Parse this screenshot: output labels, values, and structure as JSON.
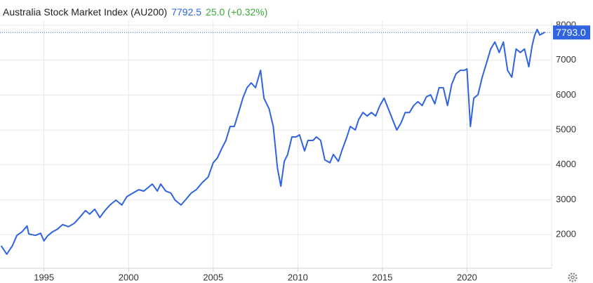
{
  "chart_data": {
    "type": "line",
    "title": "Australia Stock Market Index (AU200)",
    "price": "7792.5",
    "change": "25.0 (+0.32%)",
    "last_price": {
      "value": 7793.0,
      "label": "7793.0"
    },
    "x": [
      1992.47,
      1992.8,
      1993.13,
      1993.4,
      1993.7,
      1994.0,
      1994.1,
      1994.5,
      1994.8,
      1995.0,
      1995.2,
      1995.5,
      1995.8,
      1996.1,
      1996.45,
      1996.8,
      1997.1,
      1997.45,
      1997.7,
      1998.0,
      1998.3,
      1998.6,
      1998.9,
      1999.25,
      1999.6,
      1999.9,
      2000.25,
      2000.6,
      2000.9,
      2001.2,
      2001.4,
      2001.7,
      2001.9,
      2002.2,
      2002.5,
      2002.75,
      2003.1,
      2003.35,
      2003.7,
      2004.0,
      2004.35,
      2004.7,
      2005.0,
      2005.25,
      2005.5,
      2005.75,
      2006.0,
      2006.25,
      2006.5,
      2006.75,
      2007.0,
      2007.25,
      2007.5,
      2007.8,
      2008.0,
      2008.3,
      2008.55,
      2008.8,
      2009.0,
      2009.2,
      2009.4,
      2009.65,
      2009.9,
      2010.1,
      2010.4,
      2010.6,
      2010.9,
      2011.1,
      2011.35,
      2011.6,
      2011.9,
      2012.1,
      2012.4,
      2012.6,
      2012.9,
      2013.1,
      2013.4,
      2013.6,
      2013.85,
      2014.1,
      2014.35,
      2014.6,
      2014.85,
      2015.1,
      2015.35,
      2015.6,
      2015.85,
      2016.1,
      2016.35,
      2016.6,
      2016.85,
      2017.1,
      2017.35,
      2017.6,
      2017.85,
      2018.1,
      2018.35,
      2018.6,
      2018.85,
      2019.1,
      2019.35,
      2019.6,
      2019.85,
      2020.0,
      2020.2,
      2020.4,
      2020.65,
      2020.9,
      2021.15,
      2021.4,
      2021.65,
      2021.9,
      2022.15,
      2022.4,
      2022.65,
      2022.9,
      2023.15,
      2023.4,
      2023.65,
      2023.85,
      2024.0,
      2024.15,
      2024.3,
      2024.6
    ],
    "series": [
      {
        "name": "AU200",
        "color": "#2f63e0",
        "values": [
          1680,
          1440,
          1680,
          1980,
          2080,
          2250,
          2020,
          1980,
          2040,
          1820,
          1960,
          2080,
          2160,
          2290,
          2230,
          2330,
          2490,
          2690,
          2590,
          2730,
          2490,
          2690,
          2850,
          2990,
          2850,
          3090,
          3190,
          3290,
          3250,
          3370,
          3450,
          3250,
          3450,
          3250,
          3190,
          2990,
          2850,
          2990,
          3190,
          3290,
          3490,
          3650,
          4060,
          4200,
          4460,
          4700,
          5100,
          5100,
          5500,
          5910,
          6210,
          6350,
          6210,
          6710,
          5910,
          5610,
          5100,
          3900,
          3390,
          4100,
          4300,
          4800,
          4800,
          4860,
          4400,
          4700,
          4700,
          4800,
          4700,
          4140,
          4060,
          4300,
          4100,
          4400,
          4800,
          5100,
          5000,
          5300,
          5500,
          5400,
          5500,
          5400,
          5700,
          5910,
          5610,
          5300,
          5000,
          5200,
          5500,
          5500,
          5700,
          5810,
          5700,
          5950,
          6010,
          5750,
          6210,
          6210,
          5700,
          6310,
          6610,
          6710,
          6710,
          6750,
          5100,
          5910,
          6010,
          6510,
          6910,
          7320,
          7520,
          7220,
          7520,
          6710,
          6510,
          7320,
          7220,
          7320,
          6810,
          7420,
          7720,
          7880,
          7720,
          7800
        ]
      }
    ],
    "xlim": [
      1992.4,
      2025.0
    ],
    "ylim": [
      1038,
      8120
    ],
    "xticks": [
      1995,
      2000,
      2005,
      2010,
      2015,
      2020
    ],
    "yticks": [
      2000,
      3000,
      4000,
      5000,
      6000,
      7000,
      8000
    ],
    "grid": true
  }
}
